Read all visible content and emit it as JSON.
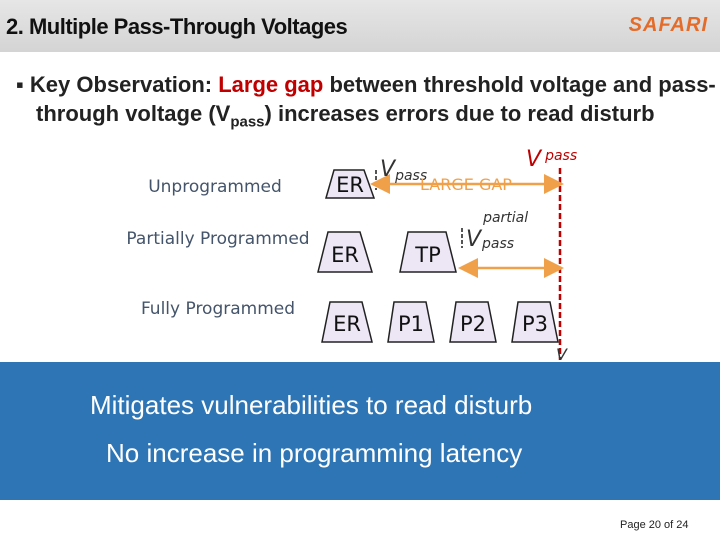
{
  "header": {
    "title": "2. Multiple Pass-Through Voltages",
    "logo": "SAFARI"
  },
  "bullet": {
    "parts": [
      "Key Observation: ",
      "Large gap",
      " between threshold voltage and pass-through voltage (V",
      "pass",
      ") increases errors due to read disturb"
    ]
  },
  "diagram": {
    "rows": [
      {
        "label": "Unprogrammed",
        "states": [
          "ER"
        ]
      },
      {
        "label": "Partially Programmed",
        "states": [
          "ER",
          "TP"
        ]
      },
      {
        "label": "Fully Programmed",
        "states": [
          "ER",
          "P1",
          "P2",
          "P3"
        ]
      }
    ],
    "vpass": {
      "symbol": "V",
      "sub": "pass"
    },
    "vpass_partial": {
      "symbol": "V",
      "sub": "pass",
      "sup": "partial"
    },
    "gap_label": "LARGE GAP",
    "vth": "V"
  },
  "banner": {
    "lines": [
      "Mitigates vulnerabilities to read disturb",
      "No increase in programming latency"
    ]
  },
  "footer": {
    "page": "Page 20 of 24"
  }
}
